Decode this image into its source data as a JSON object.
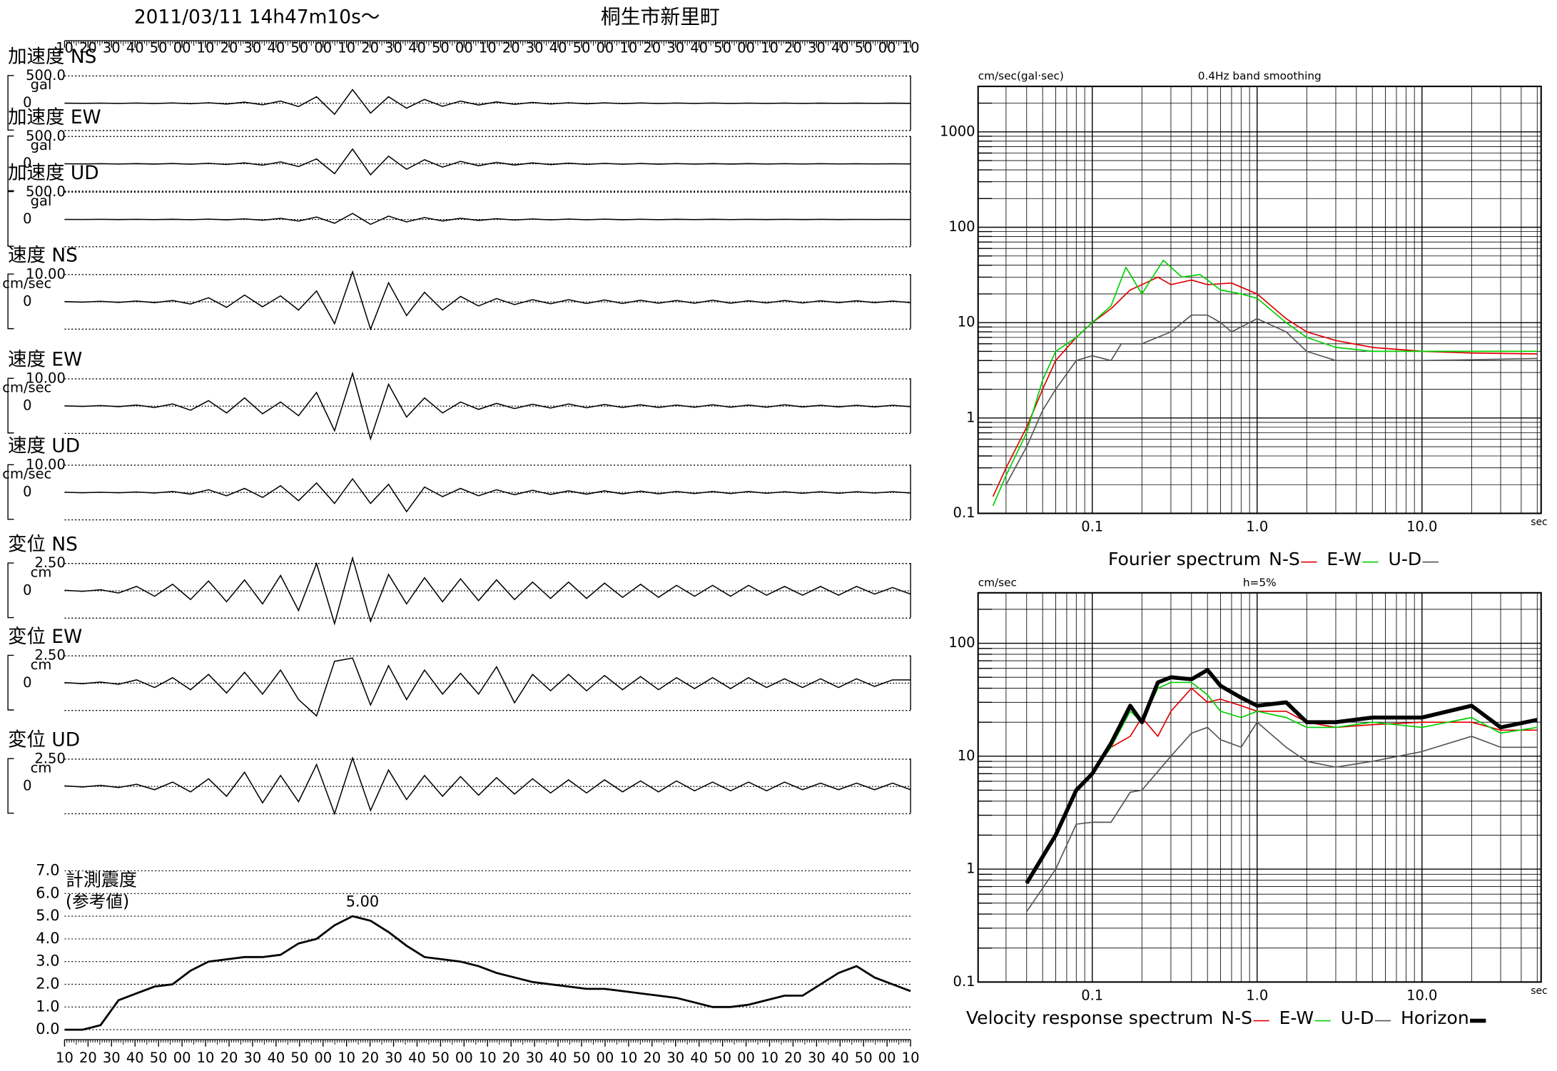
{
  "header": {
    "date": "2011/03/11  14h47m10s〜",
    "place": "桐生市新里町"
  },
  "time_labels": [
    "10",
    "20",
    "30",
    "40",
    "50",
    "00",
    "10",
    "20",
    "30",
    "40",
    "50",
    "00",
    "10",
    "20",
    "30",
    "40",
    "50",
    "00",
    "10",
    "20",
    "30",
    "40",
    "50",
    "00",
    "10",
    "20",
    "30",
    "40",
    "50",
    "00",
    "10",
    "20",
    "30",
    "40",
    "50",
    "00",
    "10"
  ],
  "traces": [
    {
      "label": "加速度 NS",
      "unit": "gal",
      "ylim": [
        -500,
        500
      ],
      "yticks": [
        {
          "value": 500,
          "label": "500.0"
        },
        0
      ],
      "values": [
        2,
        -2,
        3,
        -3,
        4,
        -5,
        6,
        -8,
        10,
        -14,
        20,
        -28,
        40,
        -60,
        120,
        -200,
        250,
        -180,
        120,
        -90,
        70,
        -55,
        40,
        -32,
        25,
        -20,
        16,
        -13,
        10,
        -9,
        8,
        -7,
        6,
        -5,
        5,
        -4,
        4,
        -4,
        3,
        -3,
        3,
        -3,
        2,
        -2,
        2,
        -2,
        2,
        -2
      ]
    },
    {
      "label": "加速度 EW",
      "unit": "gal",
      "ylim": [
        -500,
        500
      ],
      "yticks": [
        {
          "value": 500,
          "label": "500.0"
        },
        0
      ],
      "values": [
        2,
        -2,
        3,
        -3,
        4,
        -4,
        6,
        -7,
        9,
        -12,
        18,
        -25,
        35,
        -50,
        90,
        -180,
        270,
        -200,
        140,
        -100,
        75,
        -60,
        45,
        -35,
        28,
        -22,
        18,
        -14,
        12,
        -10,
        8,
        -7,
        6,
        -6,
        5,
        -5,
        4,
        -4,
        4,
        -3,
        3,
        -3,
        3,
        -2,
        2,
        -2,
        2,
        -2
      ]
    },
    {
      "label": "加速度 UD",
      "unit": "gal",
      "ylim": [
        -500,
        500
      ],
      "yticks": [
        {
          "value": 500,
          "label": "500.0"
        },
        0
      ],
      "values": [
        1,
        -1,
        2,
        -2,
        2,
        -3,
        3,
        -4,
        5,
        -7,
        10,
        -14,
        20,
        -30,
        45,
        -70,
        110,
        -90,
        60,
        -45,
        35,
        -28,
        22,
        -18,
        14,
        -11,
        9,
        -8,
        7,
        -6,
        5,
        -5,
        4,
        -4,
        3,
        -3,
        3,
        -3,
        2,
        -2,
        2,
        -2,
        2,
        -2,
        1,
        -1,
        1,
        -1
      ]
    },
    {
      "label": "速度 NS",
      "unit": "cm/sec",
      "ylim": [
        -10,
        10
      ],
      "yticks": [
        {
          "value": 10,
          "label": "10.00"
        },
        0
      ],
      "values": [
        0.1,
        -0.1,
        0.2,
        -0.2,
        0.3,
        -0.3,
        0.5,
        -0.8,
        1.5,
        -2,
        2.5,
        -1.8,
        2.2,
        -3,
        4,
        -8,
        11,
        -10,
        7,
        -5,
        3.5,
        -3,
        2,
        -1.5,
        1.2,
        -1,
        0.8,
        -0.7,
        0.8,
        -0.6,
        0.7,
        -0.6,
        0.6,
        -0.5,
        0.5,
        -0.5,
        0.6,
        -0.5,
        0.4,
        -0.4,
        0.5,
        -0.4,
        0.4,
        -0.3,
        0.4,
        -0.3,
        0.3,
        -0.3
      ]
    },
    {
      "label": "速度 EW",
      "unit": "cm/sec",
      "ylim": [
        -10,
        10
      ],
      "yticks": [
        {
          "value": 10,
          "label": "10.00"
        },
        0
      ],
      "values": [
        0.1,
        -0.1,
        0.2,
        -0.2,
        0.4,
        -0.5,
        0.8,
        -1.5,
        2,
        -2.5,
        3,
        -2.8,
        1.5,
        -3.5,
        5,
        -9,
        12,
        -12,
        8,
        -4,
        3,
        -2.5,
        1.5,
        -1.2,
        1,
        -0.9,
        0.7,
        -0.7,
        0.8,
        -0.6,
        0.6,
        -0.5,
        0.5,
        -0.5,
        0.4,
        -0.4,
        0.5,
        -0.4,
        0.4,
        -0.4,
        0.5,
        -0.3,
        0.3,
        -0.3,
        0.3,
        -0.3,
        0.3,
        -0.2
      ]
    },
    {
      "label": "速度 UD",
      "unit": "cm/sec",
      "ylim": [
        -10,
        10
      ],
      "yticks": [
        {
          "value": 10,
          "label": "10.00"
        },
        0
      ],
      "values": [
        0.1,
        -0.1,
        0.1,
        -0.1,
        0.2,
        -0.2,
        0.4,
        -0.6,
        1,
        -1.2,
        1.5,
        -1.8,
        2.5,
        -3,
        3.5,
        -4,
        5,
        -4,
        3,
        -7,
        2,
        -1.5,
        1.5,
        -1.2,
        1,
        -0.8,
        0.8,
        -0.7,
        0.6,
        -0.6,
        0.6,
        -0.5,
        0.5,
        -0.5,
        0.4,
        -0.4,
        0.4,
        -0.4,
        0.4,
        -0.3,
        0.3,
        -0.3,
        0.3,
        -0.3,
        0.3,
        -0.2,
        0.3,
        -0.2
      ]
    },
    {
      "label": "変位 NS",
      "unit": "cm",
      "ylim": [
        -2.5,
        2.5
      ],
      "yticks": [
        {
          "value": 2.5,
          "label": "2.50"
        },
        0
      ],
      "values": [
        0.05,
        -0.05,
        0.1,
        -0.2,
        0.4,
        -0.5,
        0.6,
        -0.8,
        0.9,
        -1,
        1,
        -1.2,
        1.4,
        -1.8,
        2.5,
        -3,
        3,
        -2.8,
        1.5,
        -1.2,
        1.2,
        -1,
        1.1,
        -0.9,
        1,
        -0.8,
        0.8,
        -0.7,
        0.8,
        -0.7,
        0.7,
        -0.6,
        0.6,
        -0.6,
        0.5,
        -0.5,
        0.5,
        -0.5,
        0.5,
        -0.4,
        0.4,
        -0.4,
        0.4,
        -0.4,
        0.4,
        -0.3,
        0.3,
        -0.3
      ]
    },
    {
      "label": "変位 EW",
      "unit": "cm",
      "ylim": [
        -2.5,
        2.5
      ],
      "yticks": [
        {
          "value": 2.5,
          "label": "2.50"
        },
        0
      ],
      "values": [
        0.05,
        -0.05,
        0.1,
        -0.1,
        0.3,
        -0.4,
        0.5,
        -0.6,
        0.8,
        -0.9,
        1,
        -1,
        1.2,
        -1.5,
        -3,
        2,
        2.3,
        -2,
        1.6,
        -1.5,
        1.2,
        -1,
        0.9,
        -1,
        1.5,
        -1.8,
        0.8,
        -0.7,
        0.8,
        -0.7,
        0.7,
        -0.6,
        0.6,
        -0.6,
        0.5,
        -0.5,
        0.5,
        -0.5,
        0.5,
        -0.4,
        0.4,
        -0.4,
        0.4,
        -0.4,
        0.4,
        -0.3,
        0.3,
        0.3
      ]
    },
    {
      "label": "変位 UD",
      "unit": "cm",
      "ylim": [
        -2.5,
        2.5
      ],
      "yticks": [
        {
          "value": 2.5,
          "label": "2.50"
        },
        0
      ],
      "values": [
        0.05,
        -0.05,
        0.1,
        -0.1,
        0.2,
        -0.3,
        0.4,
        -0.5,
        0.7,
        -0.9,
        1.3,
        -1.5,
        1,
        -1.4,
        2,
        -2.5,
        2.6,
        -2.2,
        1.5,
        -1.2,
        1,
        -0.9,
        0.9,
        -0.8,
        0.8,
        -0.7,
        0.7,
        -0.6,
        0.6,
        -0.6,
        0.6,
        -0.5,
        0.5,
        -0.5,
        0.5,
        -0.4,
        0.4,
        -0.4,
        0.4,
        -0.4,
        0.4,
        -0.3,
        0.3,
        -0.3,
        0.3,
        -0.3,
        0.3,
        -0.3
      ]
    }
  ],
  "chart_data": [
    {
      "type": "line",
      "title": "計測震度",
      "subtitle": "(参考値)",
      "annotation": "5.00",
      "color": "#000000",
      "ylim": [
        0,
        7
      ],
      "yticks": [
        {
          "value": 0,
          "label": "0.0"
        },
        {
          "value": 1,
          "label": "1.0"
        },
        {
          "value": 2,
          "label": "2.0"
        },
        {
          "value": 3,
          "label": "3.0"
        },
        {
          "value": 4,
          "label": "4.0"
        },
        {
          "value": 5,
          "label": "5.0"
        },
        {
          "value": 6,
          "label": "6.0"
        },
        {
          "value": 7,
          "label": "7.0"
        }
      ],
      "values": [
        0,
        0,
        0.2,
        1.3,
        1.6,
        1.9,
        2.0,
        2.6,
        3.0,
        3.1,
        3.2,
        3.2,
        3.3,
        3.8,
        4.0,
        4.6,
        5.0,
        4.8,
        4.3,
        3.7,
        3.2,
        3.1,
        3.0,
        2.8,
        2.5,
        2.3,
        2.1,
        2.0,
        1.9,
        1.8,
        1.8,
        1.7,
        1.6,
        1.5,
        1.4,
        1.2,
        1.0,
        1.0,
        1.1,
        1.3,
        1.5,
        1.5,
        2.0,
        2.5,
        2.8,
        2.3,
        2.0,
        1.7
      ]
    },
    {
      "type": "loglog",
      "title": "Fourier spectrum",
      "ylabel": "cm/sec(gal·sec)",
      "subtitle": "0.4Hz band smoothing",
      "xlabel": "sec",
      "xlim": [
        0.0203,
        52.8
      ],
      "ylim": [
        0.1,
        3000
      ],
      "xticks": [
        0.1,
        {
          "value": 1,
          "label": "1.0"
        },
        {
          "value": 10,
          "label": "10.0"
        }
      ],
      "yticks": [
        0.1,
        1,
        10,
        100,
        1000
      ],
      "grid": true,
      "series": [
        {
          "name": "N-S",
          "color": "#e00000",
          "width": 1.2,
          "x": [
            0.025,
            0.03,
            0.04,
            0.05,
            0.06,
            0.08,
            0.1,
            0.13,
            0.17,
            0.2,
            0.25,
            0.3,
            0.4,
            0.5,
            0.7,
            1.0,
            1.5,
            2,
            3,
            5,
            10,
            20,
            50
          ],
          "values": [
            0.15,
            0.3,
            0.8,
            2,
            4,
            7,
            10,
            14,
            22,
            25,
            30,
            25,
            28,
            25,
            26,
            20,
            11,
            8,
            6.5,
            5.5,
            5,
            4.8,
            4.7
          ]
        },
        {
          "name": "E-W",
          "color": "#00d000",
          "width": 1.2,
          "x": [
            0.025,
            0.03,
            0.04,
            0.05,
            0.06,
            0.08,
            0.1,
            0.13,
            0.16,
            0.2,
            0.27,
            0.35,
            0.45,
            0.6,
            0.8,
            1.0,
            1.5,
            2,
            3,
            5,
            10,
            20,
            50
          ],
          "values": [
            0.12,
            0.25,
            0.7,
            2.5,
            5,
            7,
            10,
            15,
            38,
            20,
            45,
            30,
            32,
            22,
            20,
            18,
            10,
            7,
            5.5,
            5,
            5,
            5,
            5
          ]
        },
        {
          "name": "U-D",
          "color": "#555555",
          "width": 1.2,
          "x": [
            0.03,
            0.04,
            0.05,
            0.06,
            0.08,
            0.1,
            0.13,
            0.15,
            0.2,
            0.3,
            0.4,
            0.5,
            0.6,
            0.7,
            1.0,
            1.5,
            2,
            3,
            5,
            10,
            50
          ],
          "values": [
            0.2,
            0.5,
            1.2,
            2,
            4,
            4.5,
            4,
            6,
            6,
            8,
            12,
            12,
            10,
            8,
            11,
            8,
            5,
            4,
            4,
            4,
            4.2
          ]
        }
      ]
    },
    {
      "type": "loglog",
      "title": "Velocity response spectrum",
      "ylabel": "cm/sec",
      "subtitle": "h=5%",
      "xlabel": "sec",
      "xlim": [
        0.0203,
        52.8
      ],
      "ylim": [
        0.1,
        280
      ],
      "xticks": [
        0.1,
        {
          "value": 1,
          "label": "1.0"
        },
        {
          "value": 10,
          "label": "10.0"
        }
      ],
      "yticks": [
        0.1,
        1,
        10,
        100
      ],
      "grid": true,
      "series": [
        {
          "name": "N-S",
          "color": "#e00000",
          "width": 1.2,
          "x": [
            0.04,
            0.06,
            0.08,
            0.1,
            0.13,
            0.17,
            0.2,
            0.25,
            0.3,
            0.4,
            0.5,
            0.6,
            0.8,
            1,
            1.5,
            2,
            3,
            5,
            10,
            20,
            30,
            50
          ],
          "values": [
            0.75,
            2,
            5,
            7,
            12,
            15,
            22,
            15,
            25,
            40,
            30,
            32,
            28,
            25,
            25,
            20,
            18,
            19,
            20,
            20,
            17,
            17
          ]
        },
        {
          "name": "E-W",
          "color": "#00d000",
          "width": 1.2,
          "x": [
            0.04,
            0.06,
            0.08,
            0.1,
            0.13,
            0.17,
            0.2,
            0.25,
            0.3,
            0.4,
            0.5,
            0.6,
            0.8,
            1,
            1.5,
            2,
            3,
            5,
            10,
            20,
            30,
            50
          ],
          "values": [
            0.75,
            2,
            5,
            7,
            12,
            25,
            20,
            40,
            45,
            45,
            35,
            25,
            22,
            25,
            22,
            18,
            18,
            20,
            18,
            22,
            16,
            18
          ]
        },
        {
          "name": "U-D",
          "color": "#555555",
          "width": 1.2,
          "x": [
            0.04,
            0.06,
            0.08,
            0.1,
            0.13,
            0.17,
            0.2,
            0.3,
            0.4,
            0.5,
            0.6,
            0.8,
            1,
            1.5,
            2,
            3,
            5,
            10,
            20,
            30,
            50
          ],
          "values": [
            0.42,
            1,
            2.5,
            2.6,
            2.6,
            4.8,
            5,
            10,
            16,
            18,
            14,
            12,
            20,
            12,
            9,
            8,
            9,
            11,
            15,
            12,
            12
          ]
        },
        {
          "name": "Horizon",
          "color": "#000000",
          "width": 4,
          "x": [
            0.04,
            0.06,
            0.08,
            0.1,
            0.13,
            0.17,
            0.2,
            0.25,
            0.3,
            0.4,
            0.5,
            0.6,
            0.8,
            1,
            1.5,
            2,
            3,
            5,
            10,
            20,
            30,
            50
          ],
          "values": [
            0.75,
            2,
            5,
            7,
            13,
            28,
            20,
            45,
            50,
            48,
            58,
            42,
            33,
            28,
            30,
            20,
            20,
            22,
            22,
            28,
            18,
            21
          ]
        }
      ]
    }
  ]
}
